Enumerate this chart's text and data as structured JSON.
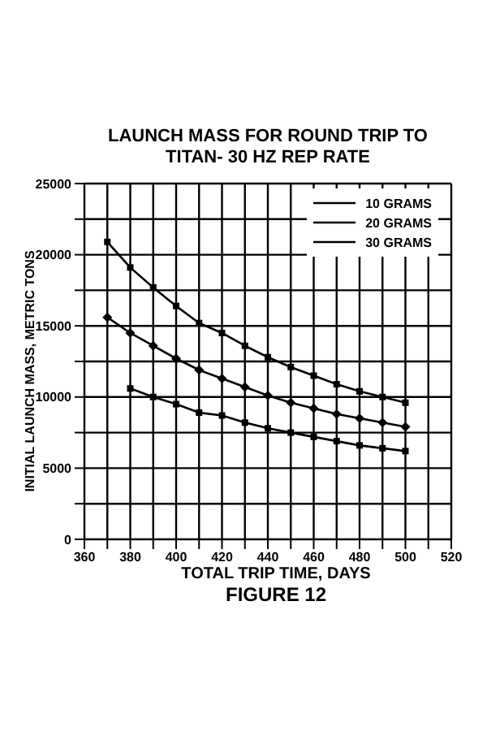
{
  "chart_data": {
    "type": "line",
    "title": "LAUNCH MASS FOR ROUND TRIP TO TITAN- 30 HZ REP RATE",
    "xlabel": "TOTAL TRIP TIME, DAYS",
    "ylabel": "INITIAL LAUNCH MASS, METRIC TONS",
    "annotations": [
      "FIGURE 12"
    ],
    "x": [
      370,
      380,
      390,
      400,
      410,
      420,
      430,
      440,
      450,
      460,
      470,
      480,
      490,
      500
    ],
    "series": [
      {
        "name": "10 GRAMS",
        "color": "#000000",
        "marker": "square",
        "values": [
          null,
          10600,
          10000,
          9500,
          8900,
          8700,
          8200,
          7800,
          7500,
          7200,
          6900,
          6600,
          6400,
          6200
        ]
      },
      {
        "name": "20 GRAMS",
        "color": "#000000",
        "marker": "diamond",
        "values": [
          15600,
          14500,
          13600,
          12700,
          11900,
          11300,
          10700,
          10100,
          9600,
          9200,
          8800,
          8500,
          8200,
          7900
        ]
      },
      {
        "name": "30 GRAMS",
        "color": "#000000",
        "marker": "square",
        "values": [
          20900,
          19100,
          17700,
          16400,
          15200,
          14500,
          13600,
          12800,
          12100,
          11500,
          10900,
          10400,
          10000,
          9600
        ]
      }
    ],
    "xlim": [
      360,
      520
    ],
    "xticks": [
      360,
      {
        "value": 370,
        "label": null
      },
      380,
      {
        "value": 390,
        "label": null
      },
      400,
      {
        "value": 410,
        "label": null
      },
      420,
      {
        "value": 430,
        "label": null
      },
      440,
      {
        "value": 450,
        "label": null
      },
      460,
      {
        "value": 470,
        "label": null
      },
      480,
      {
        "value": 490,
        "label": null
      },
      500,
      {
        "value": 510,
        "label": null
      },
      520
    ],
    "ylim": [
      0,
      25000
    ],
    "yticks": [
      0,
      {
        "value": 2500,
        "label": null
      },
      5000,
      {
        "value": 7500,
        "label": null
      },
      10000,
      {
        "value": 12500,
        "label": null
      },
      15000,
      {
        "value": 17500,
        "label": null
      },
      20000,
      {
        "value": 22500,
        "label": null
      },
      25000
    ],
    "grid": true,
    "legend": "top right",
    "line_style": "solid"
  }
}
